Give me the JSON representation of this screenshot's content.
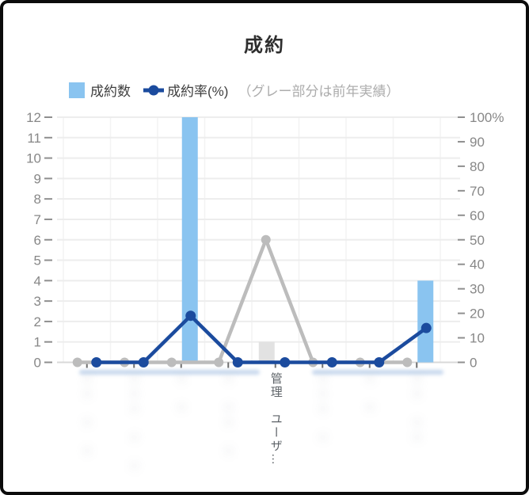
{
  "title": "成約",
  "legend": {
    "bar_label": "成約数",
    "line_label": "成約率(%)",
    "note": "（グレー部分は前年実績）"
  },
  "colors": {
    "bar_current": "#8ac4f0",
    "bar_previous": "#e2e2e2",
    "line_current": "#1b4b9e",
    "line_previous": "#bcbcbc",
    "gridline": "#ededed",
    "vertical_gridline": "#f3f3f3",
    "axis_line": "#d8d8d8",
    "axis_tick": "#8f8f8f",
    "x_tick": "#6e6e6e",
    "axis_label": "#878787",
    "title_color": "#2e2e2e",
    "legend_color": "#3e3e3e",
    "note_color": "#acacac",
    "xlabel_color": "#5e6368"
  },
  "chart_data": {
    "type": "combo bar+line, dual axis",
    "title": "成約",
    "legend_position": "top",
    "grid": "horizontal",
    "categories": [
      {
        "label": "",
        "redacted": true,
        "placeholder": "□□　□　□"
      },
      {
        "label": "",
        "redacted": true,
        "placeholder": "□□□　□　□"
      },
      {
        "label": "",
        "redacted": true,
        "placeholder": "□　□"
      },
      {
        "label": "",
        "redacted": true,
        "placeholder": "□　□□　□"
      },
      {
        "label": "管理　ユーザ…",
        "redacted": false,
        "placeholder": ""
      },
      {
        "label": "",
        "redacted": true,
        "placeholder": "□□□　□"
      },
      {
        "label": "",
        "redacted": true,
        "placeholder": "□　□"
      },
      {
        "label": "",
        "redacted": true,
        "placeholder": "□□　□□"
      }
    ],
    "series": [
      {
        "name": "成約数",
        "type": "bar",
        "axis": "left",
        "period": "current",
        "values": [
          0,
          0,
          12,
          0,
          0,
          0,
          0,
          4
        ]
      },
      {
        "name": "成約数（前年実績）",
        "type": "bar",
        "axis": "left",
        "period": "previous",
        "values": [
          0,
          0,
          0,
          0,
          1,
          0,
          0,
          0
        ]
      },
      {
        "name": "成約率(%)",
        "type": "line",
        "axis": "right",
        "period": "current",
        "values": [
          0,
          0,
          19,
          0,
          0,
          0,
          0,
          14
        ]
      },
      {
        "name": "成約率(%)（前年実績）",
        "type": "line",
        "axis": "right",
        "period": "previous",
        "values": [
          0,
          0,
          0,
          0,
          50,
          0,
          0,
          0
        ]
      }
    ],
    "left_axis": {
      "min": 0,
      "max": 12,
      "step": 1
    },
    "right_axis": {
      "min": 0,
      "max": 100,
      "step": 10,
      "suffix_on_max": "%"
    }
  }
}
